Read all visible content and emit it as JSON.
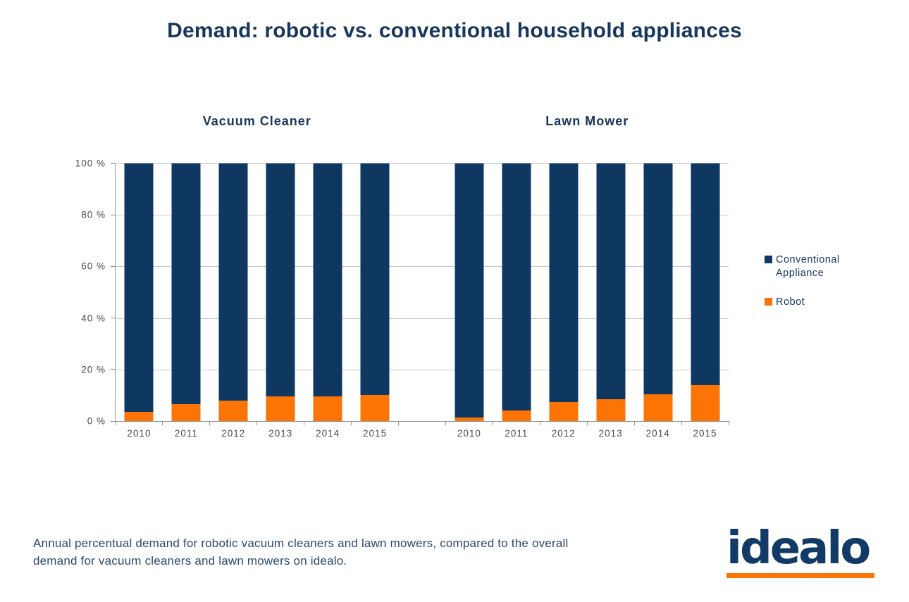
{
  "title": "Demand: robotic vs. conventional household appliances",
  "colors": {
    "navy": "#0e3862",
    "orange": "#fb7405",
    "grid": "#c9c9c9",
    "axis": "#8f8f8f",
    "title_text": "#17375d",
    "tick_text": "#4a4a4a"
  },
  "chart_data": {
    "type": "bar",
    "stacked": true,
    "unit": "percent",
    "ylim": [
      0,
      100
    ],
    "grid": true,
    "legend_position": "right",
    "y_axis": {
      "tick_values": [
        0,
        20,
        40,
        60,
        80,
        100
      ],
      "tick_labels": [
        "0 %",
        "20 %",
        "40 %",
        "60 %",
        "80 %",
        "100 %"
      ]
    },
    "groups": [
      {
        "label": "Vacuum Cleaner",
        "categories": [
          "2010",
          "2011",
          "2012",
          "2013",
          "2014",
          "2015"
        ],
        "series": [
          {
            "name": "Robot",
            "color": "#fb7405",
            "values": [
              3.5,
              6.5,
              8,
              9.5,
              9.5,
              10
            ]
          },
          {
            "name": "Conventional Appliance",
            "color": "#0e3862",
            "values": [
              96.5,
              93.5,
              92,
              90.5,
              90.5,
              90
            ]
          }
        ]
      },
      {
        "label": "Lawn Mower",
        "categories": [
          "2010",
          "2011",
          "2012",
          "2013",
          "2014",
          "2015"
        ],
        "series": [
          {
            "name": "Robot",
            "color": "#fb7405",
            "values": [
              1.5,
              4,
              7.5,
              8.5,
              10.5,
              14
            ]
          },
          {
            "name": "Conventional Appliance",
            "color": "#0e3862",
            "values": [
              98.5,
              96,
              92.5,
              91.5,
              89.5,
              86
            ]
          }
        ]
      }
    ],
    "legend": [
      {
        "label": "Conventional Appliance",
        "color": "#0e3862"
      },
      {
        "label": "Robot",
        "color": "#fb7405"
      }
    ]
  },
  "caption_lines": [
    "Annual percentual demand for robotic vacuum cleaners and lawn mowers, compared to the overall",
    "demand for vacuum cleaners and lawn mowers on idealo."
  ],
  "logo": {
    "text": "idealo"
  }
}
